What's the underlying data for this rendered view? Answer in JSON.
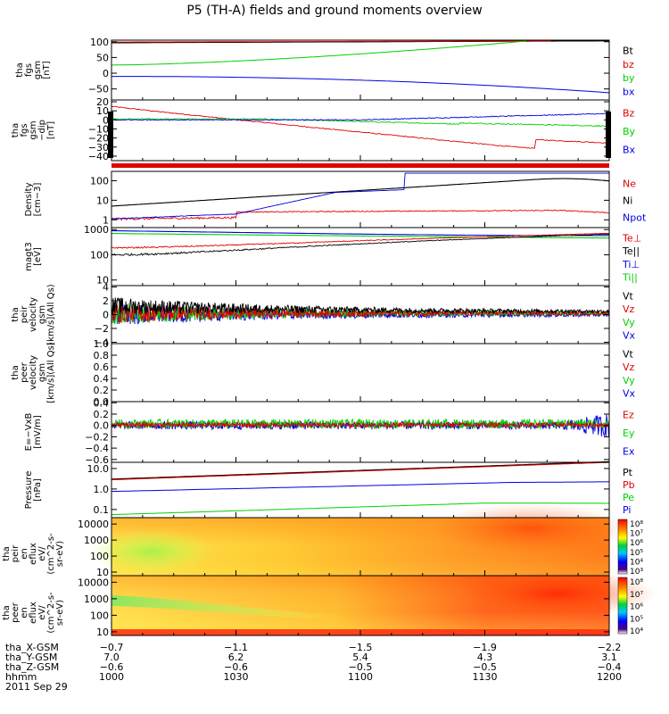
{
  "title": "P5 (TH-A) fields and ground moments overview",
  "colors": {
    "black": "#000000",
    "red": "#e00000",
    "green": "#00d000",
    "blue": "#0000e0"
  },
  "chart_data": [
    {
      "id": "fgs",
      "type": "line",
      "ylabel": [
        "tha",
        "fgs",
        "gsm",
        "[nT]"
      ],
      "yticks": [
        "100",
        "50",
        "0",
        "−50"
      ],
      "ylim": [
        -85,
        105
      ],
      "legend": [
        {
          "text": "Bt",
          "color": "black"
        },
        {
          "text": "bz",
          "color": "red"
        },
        {
          "text": "by",
          "color": "green"
        },
        {
          "text": "bx",
          "color": "blue"
        }
      ]
    },
    {
      "id": "fgs_dip",
      "type": "line",
      "ylabel": [
        "tha",
        "fgs",
        "gsm",
        "−dip",
        "[nT]"
      ],
      "yticks": [
        "20",
        "10",
        "0",
        "−10",
        "−20",
        "−30",
        "−40"
      ],
      "ylim": [
        -45,
        22
      ],
      "legend": [
        {
          "text": "Bz",
          "color": "red"
        },
        {
          "text": "By",
          "color": "green"
        },
        {
          "text": "Bx",
          "color": "blue"
        }
      ]
    },
    {
      "id": "density",
      "type": "line",
      "log": true,
      "ylabel": [
        "Density",
        "[cm−3]"
      ],
      "yticks": [
        "100",
        "10",
        "1"
      ],
      "ylim": [
        0.4,
        300
      ],
      "legend": [
        {
          "text": "Ne",
          "color": "red"
        },
        {
          "text": "Ni",
          "color": "black"
        },
        {
          "text": "Npot",
          "color": "blue"
        }
      ]
    },
    {
      "id": "temperature",
      "type": "line",
      "log": true,
      "ylabel": [
        "magt3",
        "[eV]"
      ],
      "yticks": [
        "1000",
        "100",
        "10"
      ],
      "ylim": [
        6,
        1200
      ],
      "legend": [
        {
          "text": "Te⊥",
          "color": "red"
        },
        {
          "text": "Te||",
          "color": "black"
        },
        {
          "text": "Ti⊥",
          "color": "blue"
        },
        {
          "text": "Ti||",
          "color": "green"
        }
      ]
    },
    {
      "id": "ion_velocity",
      "type": "line",
      "ylabel": [
        "tha",
        "peir",
        "velocity",
        "gsm",
        "[km/s](All Qs)"
      ],
      "yticks": [
        "4",
        "2",
        "0",
        "−2",
        "−4"
      ],
      "ylim": [
        -4.2,
        4.2
      ],
      "legend": [
        {
          "text": "Vt",
          "color": "black"
        },
        {
          "text": "Vz",
          "color": "red"
        },
        {
          "text": "Vy",
          "color": "green"
        },
        {
          "text": "Vx",
          "color": "blue"
        }
      ]
    },
    {
      "id": "electron_velocity",
      "type": "line",
      "ylabel": [
        "tha",
        "peer",
        "velocity",
        "gsm",
        "[km/s](All Qs)"
      ],
      "yticks": [
        "1.0",
        "0.8",
        "0.6",
        "0.4",
        "0.2",
        "0.0"
      ],
      "ylim": [
        0,
        1
      ],
      "legend": [
        {
          "text": "Vt",
          "color": "black"
        },
        {
          "text": "Vz",
          "color": "red"
        },
        {
          "text": "Vy",
          "color": "green"
        },
        {
          "text": "Vx",
          "color": "blue"
        }
      ]
    },
    {
      "id": "efield",
      "type": "line",
      "ylabel": [
        "E=−VxB",
        "[mV/m]"
      ],
      "yticks": [
        "0.4",
        "0.2",
        "0.0",
        "−0.2",
        "−0.4",
        "−0.6"
      ],
      "ylim": [
        -0.65,
        0.42
      ],
      "legend": [
        {
          "text": "Ez",
          "color": "red"
        },
        {
          "text": "Ey",
          "color": "green"
        },
        {
          "text": "Ex",
          "color": "blue"
        }
      ]
    },
    {
      "id": "pressure",
      "type": "line",
      "log": true,
      "ylabel": [
        "Pressure",
        "[nPa]"
      ],
      "yticks": [
        "10.0",
        "1.0",
        "0.1"
      ],
      "ylim": [
        0.04,
        20
      ],
      "legend": [
        {
          "text": "Pt",
          "color": "black"
        },
        {
          "text": "Pb",
          "color": "red"
        },
        {
          "text": "Pe",
          "color": "green"
        },
        {
          "text": "Pi",
          "color": "blue"
        }
      ]
    },
    {
      "id": "ion_eflux",
      "type": "heatmap",
      "log": true,
      "ylabel": [
        "tha",
        "peir",
        "en",
        "eflux",
        "eV/",
        "(cm^2-s-",
        "sr-eV)"
      ],
      "yticks": [
        "10000",
        "1000",
        "100",
        "10"
      ],
      "ylim": [
        6,
        25000
      ],
      "colorbar_ticks": [
        "10⁸",
        "10⁷",
        "10⁶",
        "10⁵",
        "10⁴",
        "10³"
      ]
    },
    {
      "id": "electron_eflux",
      "type": "heatmap",
      "log": true,
      "ylabel": [
        "tha",
        "peer",
        "en",
        "eflux",
        "eV/",
        "(cm^2-s-",
        "sr-eV)"
      ],
      "yticks": [
        "10000",
        "1000",
        "100",
        "10"
      ],
      "ylim": [
        6,
        25000
      ],
      "colorbar_ticks": [
        "10⁸",
        "10⁷",
        "10⁶",
        "10⁵",
        "10⁴"
      ]
    }
  ],
  "footer": {
    "labels": [
      "tha_X-GSM",
      "tha_Y-GSM",
      "tha_Z-GSM",
      "hhmm",
      "2011 Sep 29"
    ],
    "columns": [
      {
        "x": "−0.7",
        "y": "7.0",
        "z": "−0.6",
        "time": "1000"
      },
      {
        "x": "−1.1",
        "y": "6.2",
        "z": "−0.6",
        "time": "1030"
      },
      {
        "x": "−1.5",
        "y": "5.4",
        "z": "−0.5",
        "time": "1100"
      },
      {
        "x": "−1.9",
        "y": "4.3",
        "z": "−0.5",
        "time": "1130"
      },
      {
        "x": "−2.2",
        "y": "3.1",
        "z": "−0.4",
        "time": "1200"
      }
    ]
  }
}
